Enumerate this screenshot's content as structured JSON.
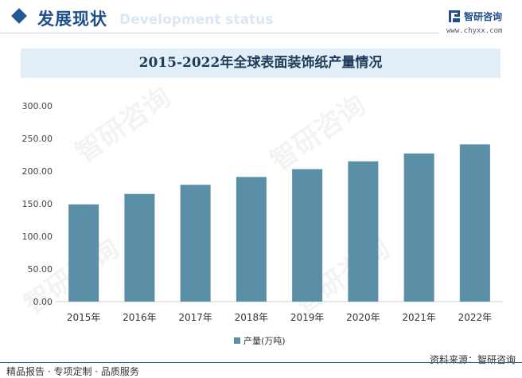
{
  "header": {
    "section_title": "发展现状",
    "section_subtitle": "Development status",
    "brand": "智研咨询",
    "site": "www.chyxx.com"
  },
  "watermark_text": "智研咨询",
  "footer": {
    "left": "精品报告 · 专项定制 · 品质服务",
    "right": "资料来源：智研咨询"
  },
  "colors": {
    "bar": "#5b8fa8",
    "accent": "#1f4e8c"
  },
  "chart_data": {
    "type": "bar",
    "title": "2015-2022年全球表面装饰纸产量情况",
    "categories": [
      "2015年",
      "2016年",
      "2017年",
      "2018年",
      "2019年",
      "2020年",
      "2021年",
      "2022年"
    ],
    "series": [
      {
        "name": "产量(万吨)",
        "values": [
          149,
          165,
          179,
          191,
          203,
          215,
          227,
          241
        ]
      }
    ],
    "y_ticks": [
      "0.00",
      "50.00",
      "100.00",
      "150.00",
      "200.00",
      "250.00",
      "300.00"
    ],
    "ylim": [
      0,
      300
    ],
    "grid": false,
    "legend": "bottom"
  }
}
